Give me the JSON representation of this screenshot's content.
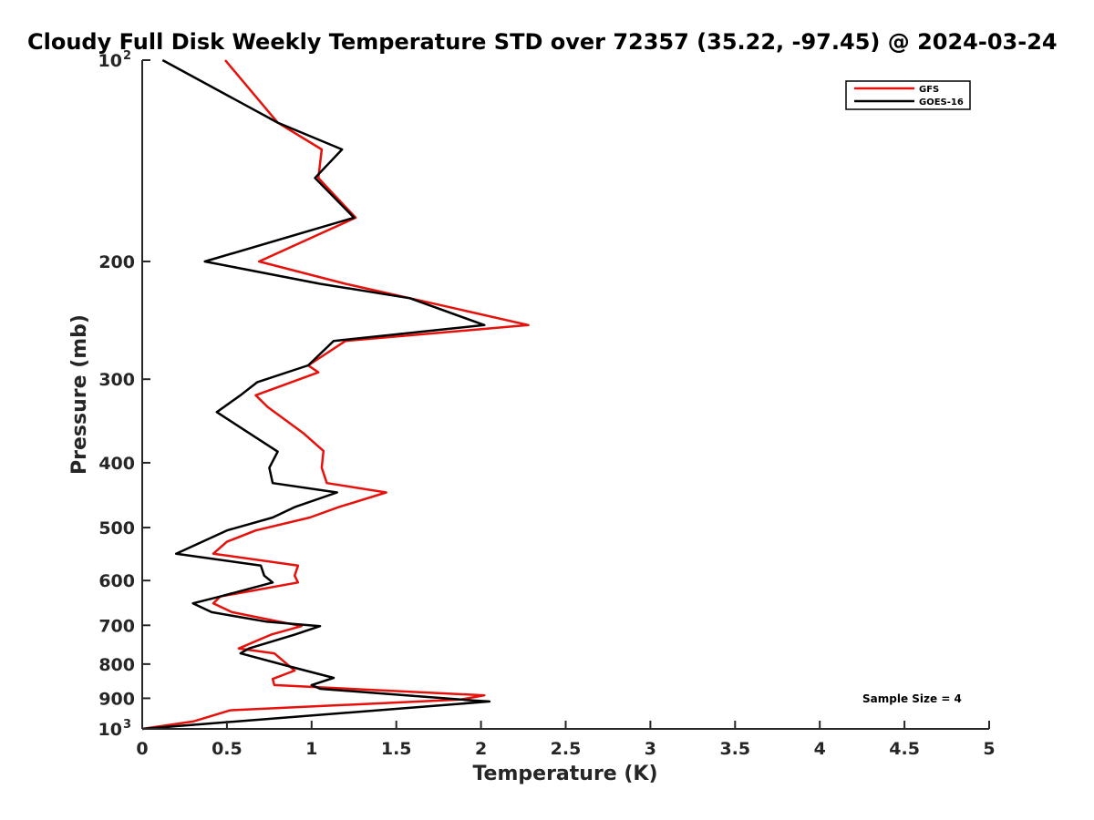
{
  "chart_data": {
    "type": "line",
    "title": "Cloudy Full Disk Weekly Temperature STD over 72357 (35.22, -97.45) @ 2024-03-24",
    "xlabel": "Temperature (K)",
    "ylabel": "Pressure (mb)",
    "xlim": [
      0,
      5
    ],
    "ylim": [
      1000,
      100
    ],
    "yscale": "log",
    "x_ticks": [
      "0",
      "0.5",
      "1",
      "1.5",
      "2",
      "2.5",
      "3",
      "3.5",
      "4",
      "4.5",
      "5"
    ],
    "y_ticks": [
      {
        "base": "10",
        "exp": "2"
      },
      {
        "base": "200",
        "exp": ""
      },
      {
        "base": "300",
        "exp": ""
      },
      {
        "base": "400",
        "exp": ""
      },
      {
        "base": "500",
        "exp": ""
      },
      {
        "base": "600",
        "exp": ""
      },
      {
        "base": "700",
        "exp": ""
      },
      {
        "base": "800",
        "exp": ""
      },
      {
        "base": "900",
        "exp": ""
      },
      {
        "base": "10",
        "exp": "3"
      }
    ],
    "legend_position": "top-right",
    "annotation": "Sample Size = 4",
    "series": [
      {
        "name": "GFS",
        "color": "#e8100a",
        "points": [
          [
            0.49,
            100
          ],
          [
            0.8,
            124
          ],
          [
            1.06,
            136
          ],
          [
            1.04,
            150
          ],
          [
            1.26,
            172
          ],
          [
            0.69,
            200
          ],
          [
            1.2,
            216
          ],
          [
            1.58,
            227
          ],
          [
            2.28,
            249
          ],
          [
            1.2,
            263
          ],
          [
            0.98,
            286
          ],
          [
            1.04,
            293
          ],
          [
            0.67,
            317
          ],
          [
            0.74,
            330
          ],
          [
            0.95,
            361
          ],
          [
            1.07,
            384
          ],
          [
            1.06,
            407
          ],
          [
            1.09,
            429
          ],
          [
            1.44,
            443
          ],
          [
            1.16,
            466
          ],
          [
            0.99,
            483
          ],
          [
            0.67,
            505
          ],
          [
            0.5,
            525
          ],
          [
            0.42,
            547
          ],
          [
            0.92,
            570
          ],
          [
            0.9,
            590
          ],
          [
            0.92,
            604
          ],
          [
            0.46,
            634
          ],
          [
            0.42,
            649
          ],
          [
            0.53,
            669
          ],
          [
            0.94,
            702
          ],
          [
            0.76,
            723
          ],
          [
            0.57,
            758
          ],
          [
            0.78,
            771
          ],
          [
            0.9,
            818
          ],
          [
            0.77,
            842
          ],
          [
            0.78,
            860
          ],
          [
            2.02,
            891
          ],
          [
            1.88,
            904
          ],
          [
            0.52,
            938
          ],
          [
            0.3,
            975
          ],
          [
            0.0,
            1000
          ]
        ]
      },
      {
        "name": "GOES-16",
        "color": "#000000",
        "points": [
          [
            0.12,
            100
          ],
          [
            0.8,
            124
          ],
          [
            1.18,
            136
          ],
          [
            1.02,
            150
          ],
          [
            1.25,
            172
          ],
          [
            0.37,
            200
          ],
          [
            1.05,
            216
          ],
          [
            1.58,
            227
          ],
          [
            2.02,
            249
          ],
          [
            1.13,
            263
          ],
          [
            0.98,
            286
          ],
          [
            0.68,
            303
          ],
          [
            0.58,
            317
          ],
          [
            0.44,
            336
          ],
          [
            0.8,
            385
          ],
          [
            0.75,
            407
          ],
          [
            0.77,
            429
          ],
          [
            1.15,
            443
          ],
          [
            0.9,
            466
          ],
          [
            0.77,
            483
          ],
          [
            0.5,
            505
          ],
          [
            0.2,
            547
          ],
          [
            0.7,
            570
          ],
          [
            0.72,
            590
          ],
          [
            0.77,
            604
          ],
          [
            0.46,
            634
          ],
          [
            0.3,
            649
          ],
          [
            0.41,
            669
          ],
          [
            0.73,
            691
          ],
          [
            1.05,
            702
          ],
          [
            0.9,
            723
          ],
          [
            0.63,
            758
          ],
          [
            0.58,
            771
          ],
          [
            0.85,
            804
          ],
          [
            1.13,
            839
          ],
          [
            1.0,
            860
          ],
          [
            1.05,
            871
          ],
          [
            1.96,
            907
          ],
          [
            2.05,
            910
          ],
          [
            0.0,
            1000
          ]
        ]
      }
    ]
  }
}
